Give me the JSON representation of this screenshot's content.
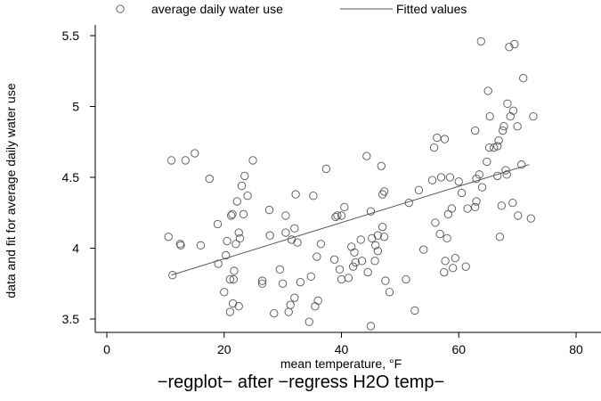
{
  "chart_data": {
    "type": "scatter",
    "xlabel": "mean temperature, °F",
    "ylabel": "data and fit for average daily water use",
    "note": "−regplot− after −regress H2O temp−",
    "xlim": [
      0,
      80
    ],
    "ylim": [
      3.45,
      5.55
    ],
    "xticks": [
      0,
      20,
      40,
      60,
      80
    ],
    "yticks": [
      3.5,
      4,
      4.5,
      5,
      5.5
    ],
    "xtick_labels": [
      "0",
      "20",
      "40",
      "60",
      "80"
    ],
    "ytick_labels": [
      "3.5",
      "4",
      "4.5",
      "5",
      "5.5"
    ],
    "grid": false,
    "legend": {
      "placement": "top",
      "entries": [
        {
          "label": "average daily water use",
          "marker": "hollow-circle"
        },
        {
          "label": "Fitted values",
          "marker": "line"
        }
      ]
    },
    "series": [
      {
        "name": "average daily water use",
        "type": "scatter",
        "points": [
          [
            11.0,
            4.62
          ],
          [
            10.5,
            4.08
          ],
          [
            11.2,
            3.81
          ],
          [
            12.5,
            4.03
          ],
          [
            12.6,
            4.02
          ],
          [
            13.4,
            4.62
          ],
          [
            15.0,
            4.67
          ],
          [
            16.0,
            4.02
          ],
          [
            17.5,
            4.49
          ],
          [
            18.9,
            4.17
          ],
          [
            19.0,
            3.89
          ],
          [
            20.0,
            3.69
          ],
          [
            20.3,
            3.95
          ],
          [
            20.5,
            4.05
          ],
          [
            21.0,
            3.78
          ],
          [
            21.0,
            3.55
          ],
          [
            21.2,
            4.23
          ],
          [
            21.4,
            4.24
          ],
          [
            21.5,
            3.61
          ],
          [
            21.6,
            3.78
          ],
          [
            21.7,
            3.84
          ],
          [
            22.0,
            4.03
          ],
          [
            22.2,
            4.33
          ],
          [
            22.5,
            4.11
          ],
          [
            22.5,
            3.59
          ],
          [
            22.7,
            4.07
          ],
          [
            23.0,
            4.44
          ],
          [
            23.3,
            4.24
          ],
          [
            23.5,
            4.51
          ],
          [
            24.0,
            4.37
          ],
          [
            24.9,
            4.62
          ],
          [
            26.5,
            3.75
          ],
          [
            26.5,
            3.77
          ],
          [
            27.7,
            4.27
          ],
          [
            27.8,
            4.09
          ],
          [
            28.5,
            3.54
          ],
          [
            29.5,
            3.85
          ],
          [
            30.0,
            3.75
          ],
          [
            30.5,
            4.11
          ],
          [
            30.5,
            4.23
          ],
          [
            31.0,
            3.55
          ],
          [
            31.3,
            3.6
          ],
          [
            31.5,
            4.06
          ],
          [
            32.0,
            3.65
          ],
          [
            32.0,
            4.14
          ],
          [
            32.2,
            4.38
          ],
          [
            32.5,
            4.04
          ],
          [
            33.0,
            3.76
          ],
          [
            34.5,
            3.48
          ],
          [
            34.8,
            3.8
          ],
          [
            35.2,
            4.37
          ],
          [
            35.5,
            3.59
          ],
          [
            35.8,
            3.94
          ],
          [
            36.0,
            3.63
          ],
          [
            36.5,
            4.03
          ],
          [
            37.4,
            4.56
          ],
          [
            38.8,
            3.92
          ],
          [
            39.0,
            4.22
          ],
          [
            39.3,
            4.23
          ],
          [
            39.7,
            3.85
          ],
          [
            40.0,
            3.78
          ],
          [
            40.0,
            4.23
          ],
          [
            40.5,
            4.29
          ],
          [
            41.2,
            3.79
          ],
          [
            41.7,
            4.01
          ],
          [
            42.0,
            3.87
          ],
          [
            42.2,
            3.97
          ],
          [
            42.4,
            3.9
          ],
          [
            43.3,
            4.06
          ],
          [
            43.5,
            3.91
          ],
          [
            44.3,
            4.65
          ],
          [
            44.5,
            3.83
          ],
          [
            45.0,
            4.26
          ],
          [
            45.0,
            3.45
          ],
          [
            45.2,
            4.07
          ],
          [
            45.7,
            3.91
          ],
          [
            45.8,
            4.02
          ],
          [
            46.2,
            3.98
          ],
          [
            46.2,
            4.09
          ],
          [
            46.8,
            4.58
          ],
          [
            47.0,
            4.15
          ],
          [
            47.0,
            4.38
          ],
          [
            47.3,
            4.4
          ],
          [
            47.3,
            4.08
          ],
          [
            47.5,
            3.77
          ],
          [
            48.2,
            3.69
          ],
          [
            51.0,
            3.78
          ],
          [
            51.5,
            4.32
          ],
          [
            52.5,
            3.56
          ],
          [
            53.2,
            4.41
          ],
          [
            54.0,
            3.99
          ],
          [
            55.5,
            4.48
          ],
          [
            55.8,
            4.71
          ],
          [
            56.0,
            4.18
          ],
          [
            56.3,
            4.78
          ],
          [
            56.8,
            4.1
          ],
          [
            57.0,
            4.5
          ],
          [
            57.5,
            3.83
          ],
          [
            57.6,
            4.77
          ],
          [
            57.7,
            3.91
          ],
          [
            58.0,
            4.07
          ],
          [
            58.2,
            4.24
          ],
          [
            58.5,
            4.5
          ],
          [
            58.8,
            4.28
          ],
          [
            59.0,
            3.86
          ],
          [
            59.4,
            3.93
          ],
          [
            60.0,
            4.47
          ],
          [
            60.5,
            4.39
          ],
          [
            61.2,
            3.87
          ],
          [
            61.5,
            4.28
          ],
          [
            62.8,
            4.83
          ],
          [
            62.8,
            4.29
          ],
          [
            63.0,
            4.33
          ],
          [
            63.0,
            4.49
          ],
          [
            63.5,
            4.52
          ],
          [
            63.8,
            5.46
          ],
          [
            64.0,
            4.43
          ],
          [
            64.8,
            4.61
          ],
          [
            65.0,
            5.11
          ],
          [
            65.2,
            4.71
          ],
          [
            65.3,
            4.93
          ],
          [
            66.0,
            4.71
          ],
          [
            66.6,
            4.51
          ],
          [
            66.6,
            4.72
          ],
          [
            66.8,
            4.76
          ],
          [
            67.0,
            4.08
          ],
          [
            67.3,
            4.3
          ],
          [
            67.5,
            4.83
          ],
          [
            67.7,
            4.86
          ],
          [
            68.0,
            4.55
          ],
          [
            68.2,
            4.52
          ],
          [
            68.3,
            5.02
          ],
          [
            68.6,
            5.42
          ],
          [
            68.8,
            4.93
          ],
          [
            69.2,
            4.32
          ],
          [
            69.3,
            4.97
          ],
          [
            69.5,
            5.44
          ],
          [
            70.0,
            4.86
          ],
          [
            70.1,
            4.23
          ],
          [
            70.7,
            4.59
          ],
          [
            71.0,
            5.2
          ],
          [
            72.3,
            4.21
          ],
          [
            72.7,
            4.93
          ]
        ]
      },
      {
        "name": "Fitted values",
        "type": "line",
        "points": [
          [
            11.0,
            3.81
          ],
          [
            72.0,
            4.59
          ]
        ]
      }
    ]
  }
}
